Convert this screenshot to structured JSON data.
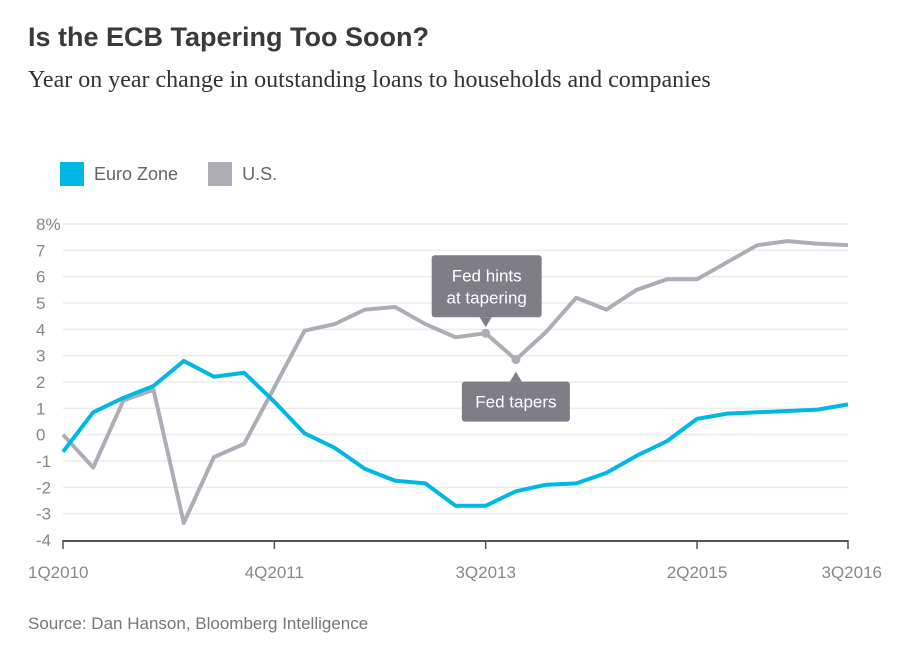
{
  "title": "Is the ECB Tapering Too Soon?",
  "subtitle": "Year on year change in outstanding loans to households and companies",
  "source": "Source: Dan Hanson, Bloomberg Intelligence",
  "colors": {
    "euro": "#00b8e4",
    "us": "#aeadb5",
    "annotation": "#7f7e86"
  },
  "chart_data": {
    "type": "line",
    "title": "Is the ECB Tapering Too Soon?",
    "ylabel": "",
    "xlabel": "",
    "ylim": [
      -4,
      8
    ],
    "yticks": [
      -4,
      -3,
      -2,
      -1,
      0,
      1,
      2,
      3,
      4,
      5,
      6,
      7,
      8
    ],
    "ytick_labels": [
      "-4",
      "-3",
      "-2",
      "-1",
      "0",
      "1",
      "2",
      "3",
      "4",
      "5",
      "6",
      "7",
      "8%"
    ],
    "x_tick_labels": [
      {
        "index": 0,
        "label": "1Q2010"
      },
      {
        "index": 7,
        "label": "4Q2011"
      },
      {
        "index": 14,
        "label": "3Q2013"
      },
      {
        "index": 21,
        "label": "2Q2015"
      },
      {
        "index": 26,
        "label": "3Q2016"
      }
    ],
    "grid": true,
    "legend_position": "top-left",
    "x": [
      "1Q2010",
      "2Q2010",
      "3Q2010",
      "4Q2010",
      "1Q2011",
      "2Q2011",
      "3Q2011",
      "4Q2011",
      "1Q2012",
      "2Q2012",
      "3Q2012",
      "4Q2012",
      "1Q2013",
      "2Q2013",
      "3Q2013",
      "4Q2013",
      "1Q2014",
      "2Q2014",
      "3Q2014",
      "4Q2014",
      "1Q2015",
      "2Q2015",
      "3Q2015",
      "4Q2015",
      "1Q2016",
      "2Q2016",
      "3Q2016"
    ],
    "series": [
      {
        "name": "Euro Zone",
        "values": [
          -0.65,
          0.85,
          1.4,
          1.85,
          2.8,
          2.2,
          2.35,
          1.25,
          0.05,
          -0.5,
          -1.3,
          -1.75,
          -1.85,
          -2.7,
          -2.7,
          -2.15,
          -1.9,
          -1.85,
          -1.45,
          -0.8,
          -0.25,
          0.6,
          0.8,
          0.85,
          0.9,
          0.95,
          1.15
        ]
      },
      {
        "name": "U.S.",
        "values": [
          0,
          -1.25,
          1.3,
          1.7,
          -3.35,
          -0.85,
          -0.35,
          1.8,
          3.95,
          4.2,
          4.75,
          4.85,
          4.2,
          3.7,
          3.85,
          2.85,
          3.9,
          5.2,
          4.75,
          5.5,
          5.9,
          5.9,
          6.55,
          7.2,
          7.35,
          7.25,
          7.2
        ]
      }
    ],
    "annotations": [
      {
        "series": "U.S.",
        "index": 14,
        "lines": [
          "Fed hints",
          "at tapering"
        ],
        "placement": "above"
      },
      {
        "series": "U.S.",
        "index": 15,
        "lines": [
          "Fed tapers"
        ],
        "placement": "below"
      }
    ]
  }
}
